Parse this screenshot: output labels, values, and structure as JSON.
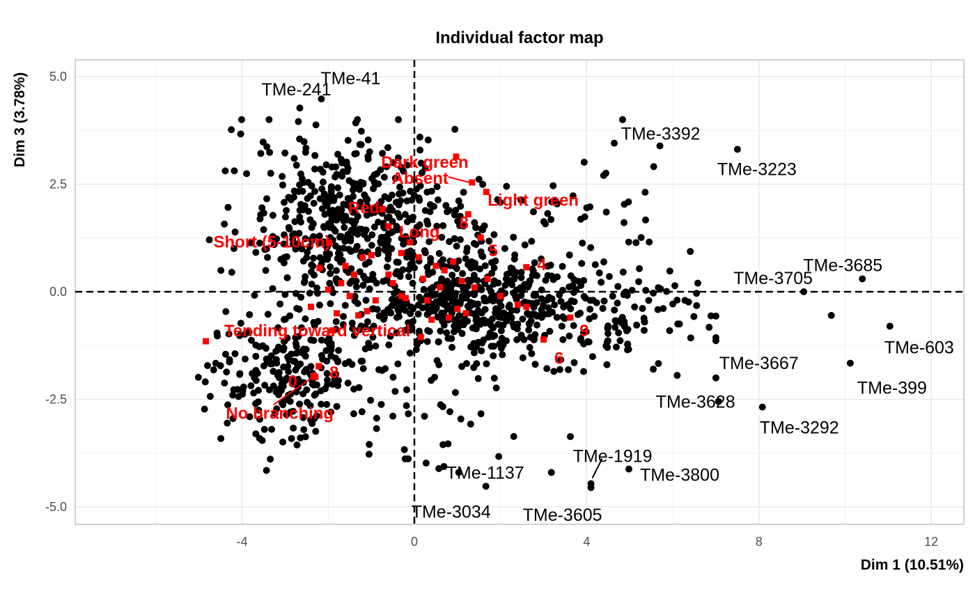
{
  "chart_data": {
    "type": "scatter",
    "title": "Individual factor map",
    "xlabel": "Dim 1 (10.51%)",
    "ylabel": "Dim 3 (3.78%)",
    "xlim": [
      -7.8,
      12.6
    ],
    "ylim": [
      -5.45,
      5.3
    ],
    "x_ticks": [
      "-4",
      "0",
      "4",
      "8",
      "12"
    ],
    "y_ticks": [
      "5.0",
      "2.5",
      "0.0",
      "-2.5",
      "-5.0"
    ],
    "grid": true,
    "reference_lines": {
      "x": 0,
      "y": 0
    },
    "colors": {
      "individuals": "#000000",
      "categories": "#ff0000",
      "grid": "#ebebeb",
      "panel_border": "#b3b3b3"
    },
    "labeled_individuals": [
      {
        "name": "TMe-41",
        "x": -2.16,
        "y": 4.48
      },
      {
        "name": "TMe-241",
        "x": -2.66,
        "y": 4.27
      },
      {
        "name": "TMe-3392",
        "x": 5.7,
        "y": 3.39
      },
      {
        "name": "TMe-3223",
        "x": 7.5,
        "y": 3.31
      },
      {
        "name": "TMe-3685",
        "x": 10.4,
        "y": 0.3
      },
      {
        "name": "TMe-3705",
        "x": 9.04,
        "y": 0.0
      },
      {
        "name": "TMe-3667",
        "x": 9.68,
        "y": -0.55
      },
      {
        "name": "TMe-603",
        "x": 11.04,
        "y": -0.8
      },
      {
        "name": "TMe-399",
        "x": 10.12,
        "y": -1.66
      },
      {
        "name": "TMe-3628",
        "x": 7.06,
        "y": -2.55
      },
      {
        "name": "TMe-3292",
        "x": 8.08,
        "y": -2.68
      },
      {
        "name": "TMe-1919",
        "x": 4.1,
        "y": -4.46
      },
      {
        "name": "TMe-3800",
        "x": 4.98,
        "y": -4.12
      },
      {
        "name": "TMe-1137",
        "x": 3.18,
        "y": -4.2
      },
      {
        "name": "TMe-3605",
        "x": 4.1,
        "y": -4.55
      },
      {
        "name": "TMe-3034",
        "x": 1.66,
        "y": -4.52
      }
    ],
    "categories": [
      {
        "name": "Dark green",
        "x": 0.97,
        "y": 3.14
      },
      {
        "name": "Absent",
        "x": 1.34,
        "y": 2.54
      },
      {
        "name": "Light green",
        "x": 1.67,
        "y": 2.32
      },
      {
        "name": "8",
        "x": 1.25,
        "y": 1.8
      },
      {
        "name": "Red",
        "x": -0.74,
        "y": 1.92
      },
      {
        "name": "Long",
        "x": -0.6,
        "y": 1.52
      },
      {
        "name": "Short (5-10cm)",
        "x": -1.98,
        "y": 1.14
      },
      {
        "name": "5",
        "x": 1.54,
        "y": 1.26
      },
      {
        "name": "4",
        "x": 2.6,
        "y": 0.57
      },
      {
        "name": "Tending toward vertical",
        "x": -4.84,
        "y": -1.15
      },
      {
        "name": "9",
        "x": 3.62,
        "y": -0.6
      },
      {
        "name": "6",
        "x": 3.0,
        "y": -1.11
      },
      {
        "name": "8",
        "x": -2.22,
        "y": -1.73
      },
      {
        "name": "0",
        "x": -2.34,
        "y": -1.95
      },
      {
        "name": "No branching",
        "x": -2.3,
        "y": -1.98
      }
    ],
    "unlabeled_category_points": [
      [
        -1.9,
        -0.9
      ],
      [
        -2.4,
        -0.35
      ],
      [
        -2.2,
        0.55
      ],
      [
        -1.0,
        0.85
      ],
      [
        -0.3,
        0.9
      ],
      [
        0.7,
        0.5
      ],
      [
        -0.5,
        0.2
      ],
      [
        0.2,
        0.3
      ],
      [
        -1.4,
        0.4
      ],
      [
        -1.6,
        0.6
      ],
      [
        -1.8,
        -0.5
      ],
      [
        -0.9,
        -0.2
      ],
      [
        -0.3,
        -0.1
      ],
      [
        0.3,
        -0.2
      ],
      [
        1.0,
        -0.4
      ],
      [
        1.4,
        0.1
      ],
      [
        2.0,
        -0.1
      ],
      [
        2.4,
        -0.3
      ],
      [
        0.6,
        0.1
      ],
      [
        -1.3,
        -0.55
      ],
      [
        -1.2,
        0.8
      ],
      [
        0.9,
        0.7
      ],
      [
        -0.1,
        1.15
      ],
      [
        1.7,
        0.3
      ],
      [
        -1.1,
        -0.45
      ],
      [
        0.8,
        -0.6
      ],
      [
        0.4,
        -0.65
      ],
      [
        0.15,
        -1.05
      ],
      [
        -0.2,
        -0.15
      ],
      [
        1.1,
        0.25
      ],
      [
        -0.6,
        0.4
      ],
      [
        -1.5,
        -0.1
      ],
      [
        0.1,
        0.8
      ],
      [
        -2.0,
        0.05
      ],
      [
        2.6,
        -0.35
      ],
      [
        1.2,
        -0.5
      ],
      [
        0.5,
        0.6
      ],
      [
        -1.7,
        0.2
      ]
    ],
    "individuals_count": 1400
  }
}
